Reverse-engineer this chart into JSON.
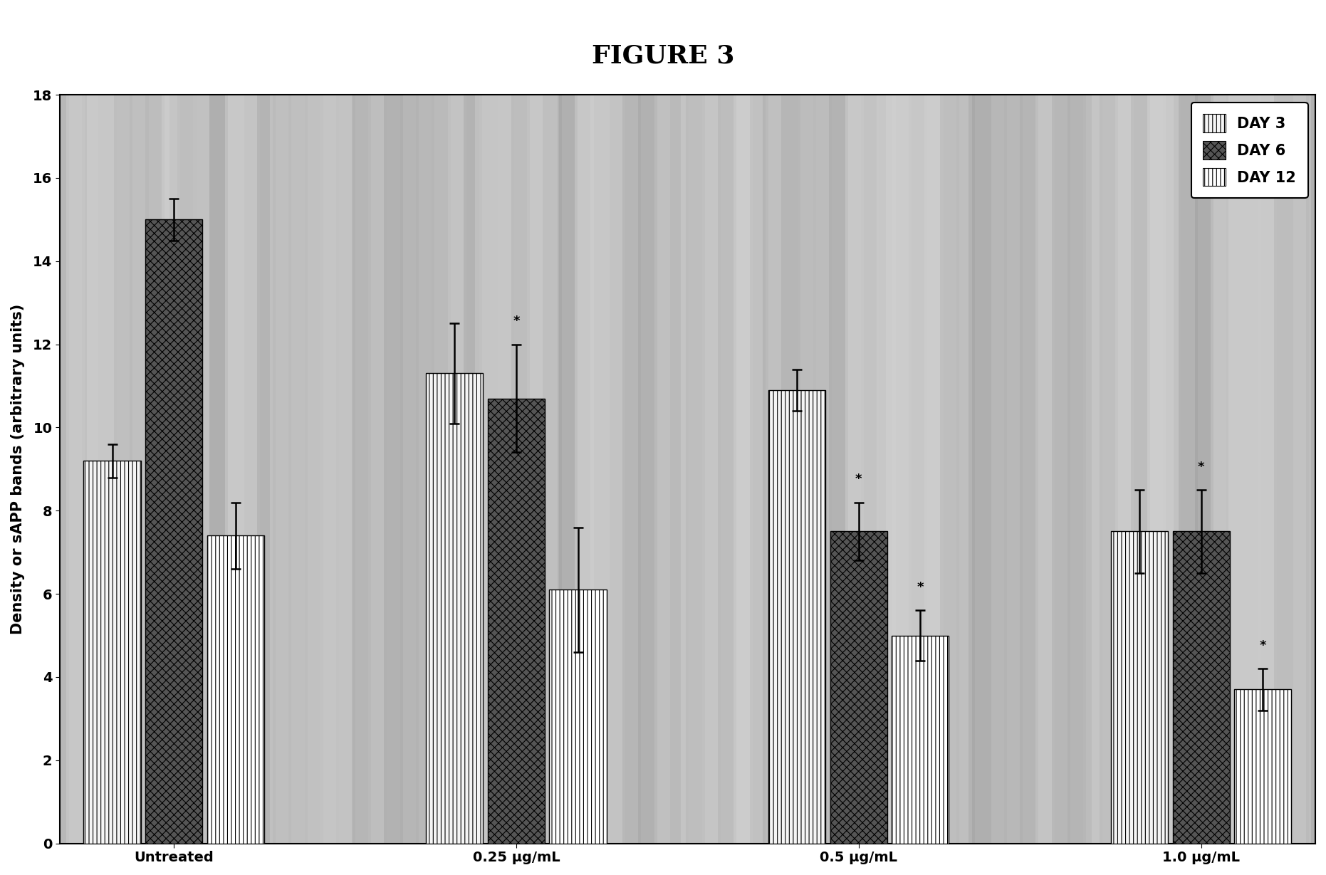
{
  "title": "FIGURE 3",
  "ylabel": "Density or sAPP bands (arbitrary units)",
  "categories": [
    "Untreated",
    "0.25 μg/mL",
    "0.5 μg/mL",
    "1.0 μg/mL"
  ],
  "legend_labels": [
    "DAY 3",
    "DAY 6",
    "DAY 12"
  ],
  "bar_values": [
    [
      9.2,
      15.0,
      7.4
    ],
    [
      11.3,
      10.7,
      6.1
    ],
    [
      10.9,
      7.5,
      5.0
    ],
    [
      7.5,
      7.5,
      3.7
    ]
  ],
  "bar_errors": [
    [
      0.4,
      0.5,
      0.8
    ],
    [
      1.2,
      1.3,
      1.5
    ],
    [
      0.5,
      0.7,
      0.6
    ],
    [
      1.0,
      1.0,
      0.5
    ]
  ],
  "ylim": [
    0,
    18
  ],
  "yticks": [
    0,
    2,
    4,
    6,
    8,
    10,
    12,
    14,
    16,
    18
  ],
  "bar_width": 0.25,
  "group_positions": [
    0.5,
    2.0,
    3.5,
    5.0
  ],
  "xlim": [
    0,
    5.5
  ],
  "day3_hatch": "|||",
  "day6_hatch": "xxx",
  "day12_hatch": "|||",
  "day3_facecolor": "#f5f5f5",
  "day6_facecolor": "#555555",
  "day12_facecolor": "#ffffff",
  "edgecolor": "#000000",
  "title_fontsize": 26,
  "axis_label_fontsize": 15,
  "tick_fontsize": 14,
  "legend_fontsize": 15,
  "asterisk_positions": [
    [
      2,
      1,
      false
    ],
    [
      3,
      1,
      true
    ],
    [
      3,
      2,
      true
    ],
    [
      4,
      1,
      true
    ],
    [
      4,
      2,
      true
    ]
  ],
  "bg_stripe_colors": [
    "#c8c8c8",
    "#b0b0b0",
    "#d0d0d0",
    "#a8a8a8",
    "#c0c0c0",
    "#d8d8d8",
    "#b8b8b8",
    "#c8c8c8",
    "#a0a0a0",
    "#d4d4d4",
    "#bcbcbc",
    "#c4c4c4",
    "#b4b4b4",
    "#cccccc",
    "#c0c0c0"
  ]
}
